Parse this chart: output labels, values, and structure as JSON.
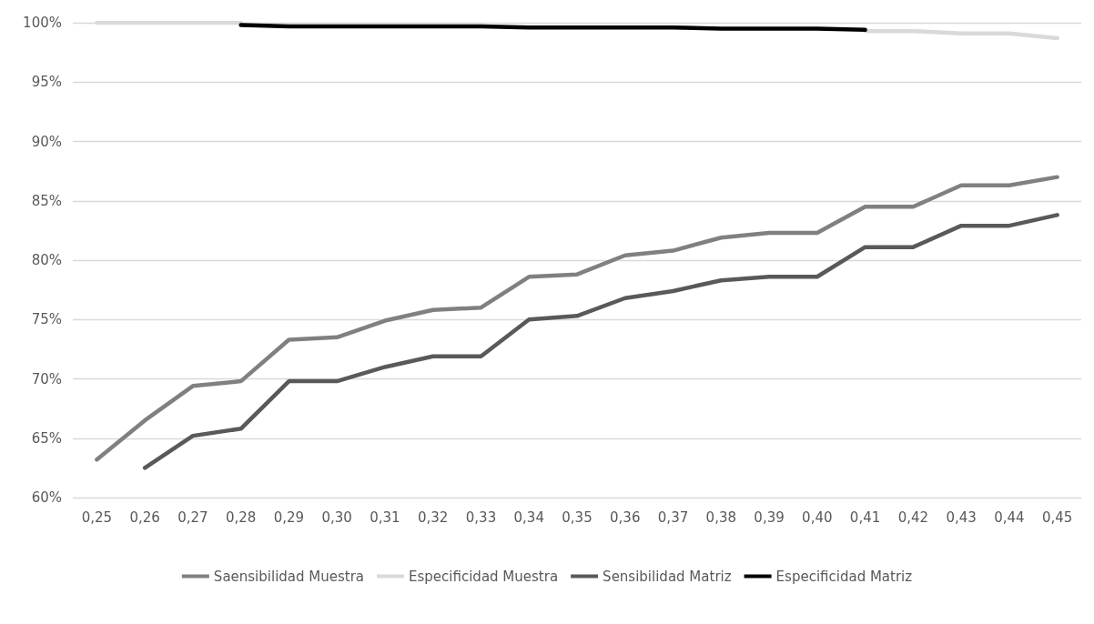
{
  "chart_data": {
    "type": "line",
    "categories": [
      "0,25",
      "0,26",
      "0,27",
      "0,28",
      "0,29",
      "0,30",
      "0,31",
      "0,32",
      "0,33",
      "0,34",
      "0,35",
      "0,36",
      "0,37",
      "0,38",
      "0,39",
      "0,40",
      "0,41",
      "0,42",
      "0,43",
      "0,44",
      "0,45"
    ],
    "series": [
      {
        "name": "Saensibilidad Muestra",
        "color": "#808080",
        "values": [
          63.2,
          66.5,
          69.4,
          69.8,
          73.3,
          73.5,
          74.9,
          75.8,
          76.0,
          78.6,
          78.8,
          80.4,
          80.8,
          81.9,
          82.3,
          82.3,
          84.5,
          84.5,
          86.3,
          86.3,
          87.0
        ]
      },
      {
        "name": "Especificidad Muestra",
        "color": "#d9d9d9",
        "values": [
          100,
          100,
          100,
          100,
          null,
          null,
          null,
          null,
          null,
          null,
          null,
          null,
          null,
          null,
          null,
          null,
          99.3,
          99.3,
          99.1,
          99.1,
          98.7
        ]
      },
      {
        "name": "Sensibilidad Matriz",
        "color": "#595959",
        "values": [
          null,
          62.5,
          65.2,
          65.8,
          69.8,
          69.8,
          71.0,
          71.9,
          71.9,
          75.0,
          75.3,
          76.8,
          77.4,
          78.3,
          78.6,
          78.6,
          81.1,
          81.1,
          82.9,
          82.9,
          83.8
        ]
      },
      {
        "name": "Especificidad Matriz",
        "color": "#000000",
        "values": [
          null,
          null,
          null,
          99.8,
          99.7,
          99.7,
          99.7,
          99.7,
          99.7,
          99.6,
          99.6,
          99.6,
          99.6,
          99.5,
          99.5,
          99.5,
          99.4,
          null,
          null,
          null,
          null
        ]
      }
    ],
    "ylim": [
      60,
      100
    ],
    "yticks": [
      {
        "value": 60,
        "label": "60%"
      },
      {
        "value": 65,
        "label": "65%"
      },
      {
        "value": 70,
        "label": "70%"
      },
      {
        "value": 75,
        "label": "75%"
      },
      {
        "value": 80,
        "label": "80%"
      },
      {
        "value": 85,
        "label": "85%"
      },
      {
        "value": 90,
        "label": "90%"
      },
      {
        "value": 95,
        "label": "95%"
      },
      {
        "value": 100,
        "label": "100%"
      }
    ],
    "grid": "y",
    "legend": "bottom",
    "marker": "none",
    "line_style": "solid"
  }
}
